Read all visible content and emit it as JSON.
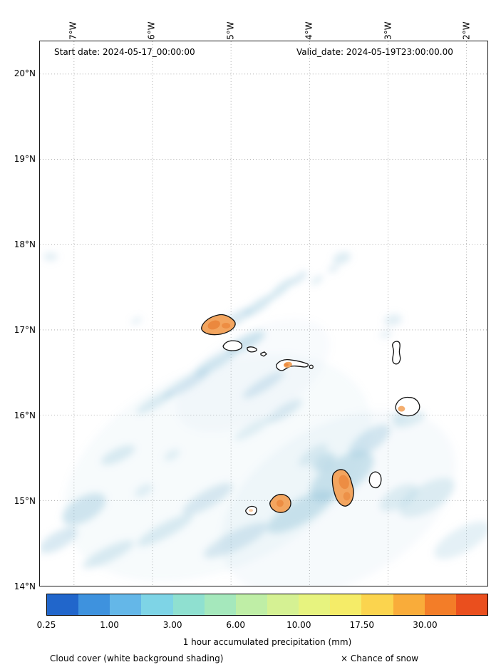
{
  "header": {
    "start_date_label": "Start date: 2024-05-17_00:00:00",
    "valid_date_label": "Valid_date: 2024-05-19T23:00:00.00"
  },
  "axes": {
    "x_ticks": [
      "27°W",
      "26°W",
      "25°W",
      "24°W",
      "23°W",
      "22°W"
    ],
    "y_ticks": [
      "20°N",
      "19°N",
      "18°N",
      "17°N",
      "16°N",
      "15°N",
      "14°N"
    ]
  },
  "colorbar": {
    "label": "1 hour accumulated precipitation (mm)",
    "tick_labels": [
      "0.25",
      "1.00",
      "3.00",
      "6.00",
      "10.00",
      "17.50",
      "30.00"
    ],
    "tick_positions_pct": [
      0,
      14.2857,
      28.5714,
      42.8571,
      57.1428,
      71.4285,
      85.7142
    ],
    "segment_colors": [
      "#2166cb",
      "#3e92de",
      "#64b7e8",
      "#7ed4e6",
      "#8fe0d0",
      "#a5e8bc",
      "#bfeea6",
      "#d5f193",
      "#e7f37f",
      "#f5ec68",
      "#fbd44e",
      "#f9ac3a",
      "#f37d28",
      "#ea4f1e"
    ]
  },
  "legend": {
    "cloud_label": "Cloud cover (white background shading)",
    "snow_label": "× Chance of snow"
  },
  "map_colors": {
    "cloud_shading": "#9ec9de",
    "precip_light": "#f3a55f",
    "precip_dark": "#e98338",
    "coastline": "#111111",
    "grid": "#9a9a9a"
  }
}
